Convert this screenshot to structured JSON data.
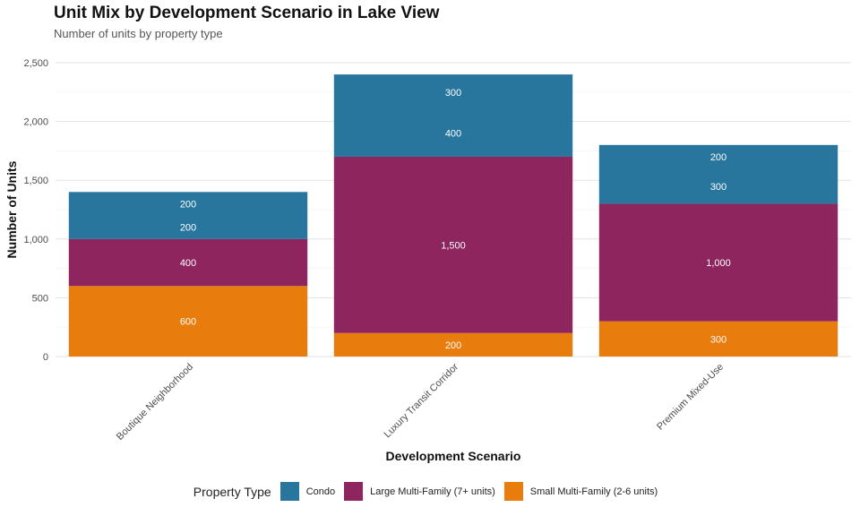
{
  "chart_data": {
    "type": "bar",
    "stacked": true,
    "title": "Unit Mix by Development Scenario in Lake View",
    "subtitle": "Number of units by property type",
    "xlabel": "Development Scenario",
    "ylabel": "Number of Units",
    "ylim": [
      0,
      2500
    ],
    "yticks": [
      0,
      500,
      1000,
      1500,
      2000,
      2500
    ],
    "ytick_labels": [
      "0",
      "500",
      "1,000",
      "1,500",
      "2,000",
      "2,500"
    ],
    "grid": true,
    "categories": [
      "Boutique Neighborhood",
      "Luxury Transit Corridor",
      "Premium Mixed-Use"
    ],
    "series": [
      {
        "name": "Small Multi-Family (2-6 units)",
        "color": "#E87D0D",
        "values": [
          600,
          200,
          300
        ],
        "labels": [
          "600",
          "200",
          "300"
        ]
      },
      {
        "name": "Large Multi-Family (7+ units)",
        "color": "#8E255E",
        "values": [
          400,
          1500,
          1000
        ],
        "labels": [
          "400",
          "1,500",
          "1,000"
        ]
      },
      {
        "name": "Condo",
        "color": "#28759E",
        "values": [
          400,
          700,
          500
        ],
        "segment_labels": [
          [
            "200",
            "200"
          ],
          [
            "400",
            "300"
          ],
          [
            "300",
            "200"
          ]
        ]
      }
    ],
    "legend": {
      "title": "Property Type",
      "position": "bottom",
      "order": [
        "Condo",
        "Large Multi-Family (7+ units)",
        "Small Multi-Family (2-6 units)"
      ]
    }
  }
}
